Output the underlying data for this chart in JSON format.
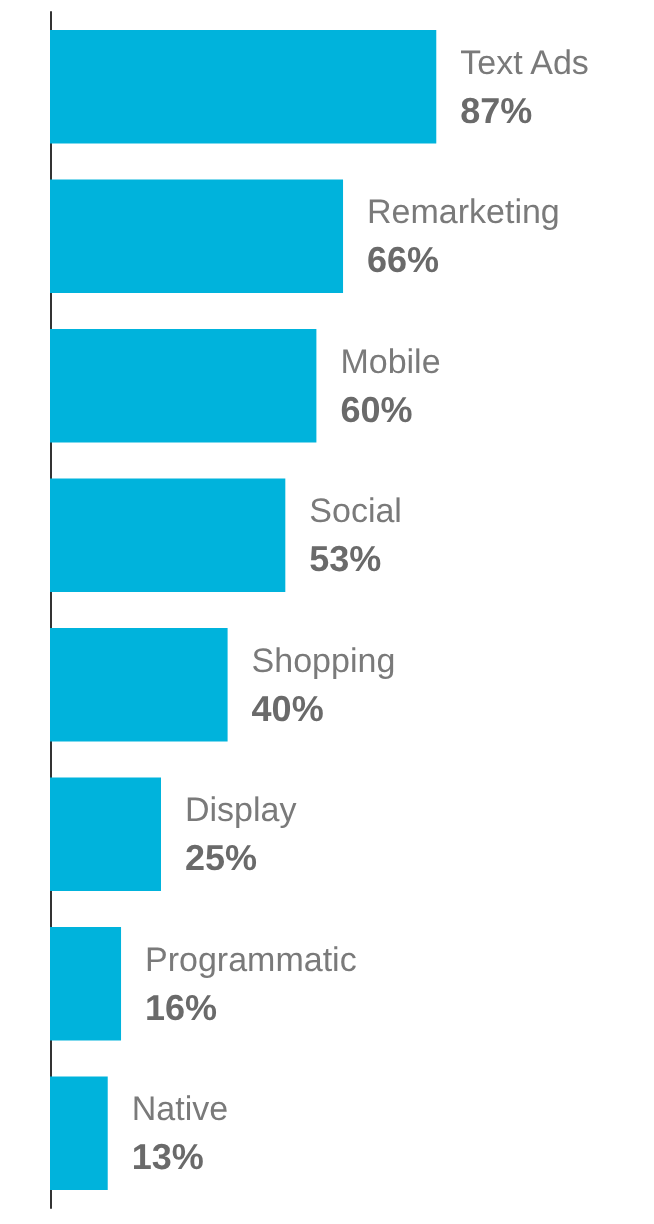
{
  "chart_data": {
    "type": "bar",
    "orientation": "horizontal",
    "categories": [
      "Text Ads",
      "Remarketing",
      "Mobile",
      "Social",
      "Shopping",
      "Display",
      "Programmatic",
      "Native"
    ],
    "values": [
      87,
      66,
      60,
      53,
      40,
      25,
      16,
      13
    ],
    "value_labels": [
      "87%",
      "66%",
      "60%",
      "53%",
      "40%",
      "25%",
      "16%",
      "13%"
    ],
    "color": "#00b3dc",
    "grid": false
  }
}
